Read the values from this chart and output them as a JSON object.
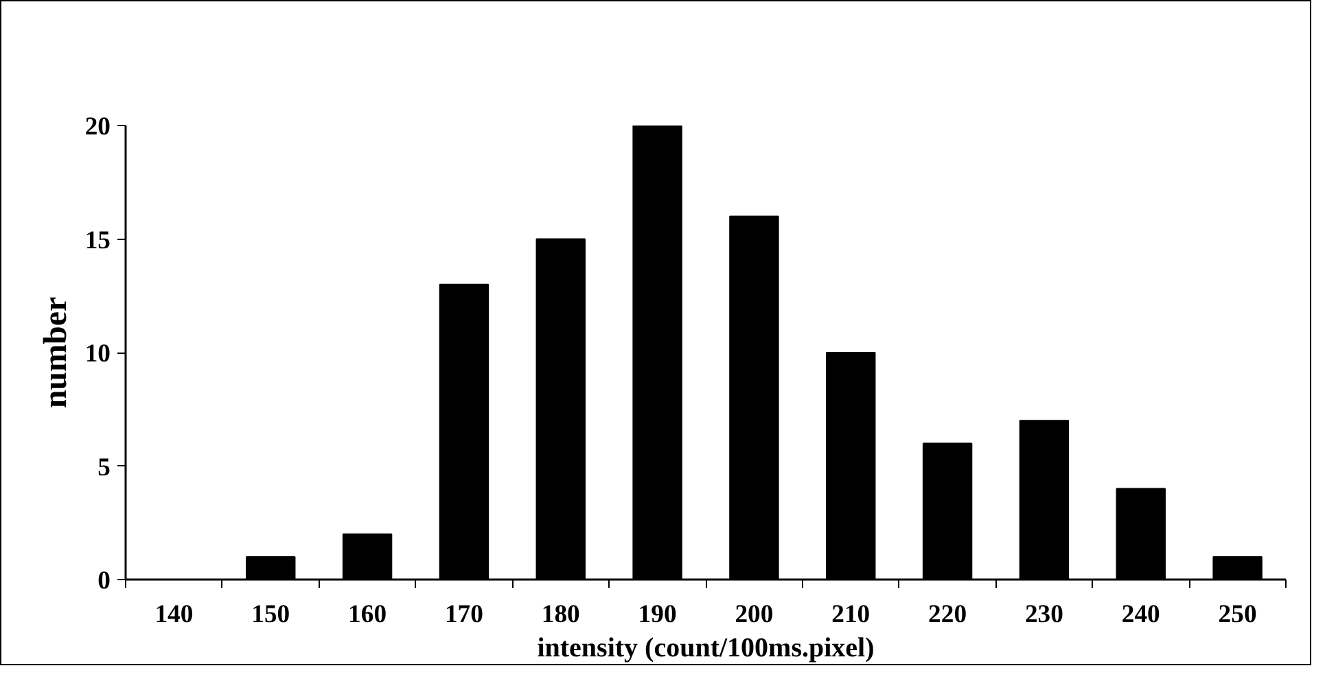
{
  "chart_data": {
    "type": "bar",
    "xlabel": "intensity (count/100ms.pixel)",
    "ylabel": "number",
    "categories": [
      "140",
      "150",
      "160",
      "170",
      "180",
      "190",
      "200",
      "210",
      "220",
      "230",
      "240",
      "250"
    ],
    "values": [
      0,
      1,
      2,
      13,
      15,
      20,
      16,
      10,
      6,
      7,
      4,
      1
    ],
    "color": "#000000",
    "ylim": [
      0,
      20
    ],
    "yticks": [
      0,
      5,
      10,
      15,
      20
    ],
    "grid": false
  }
}
